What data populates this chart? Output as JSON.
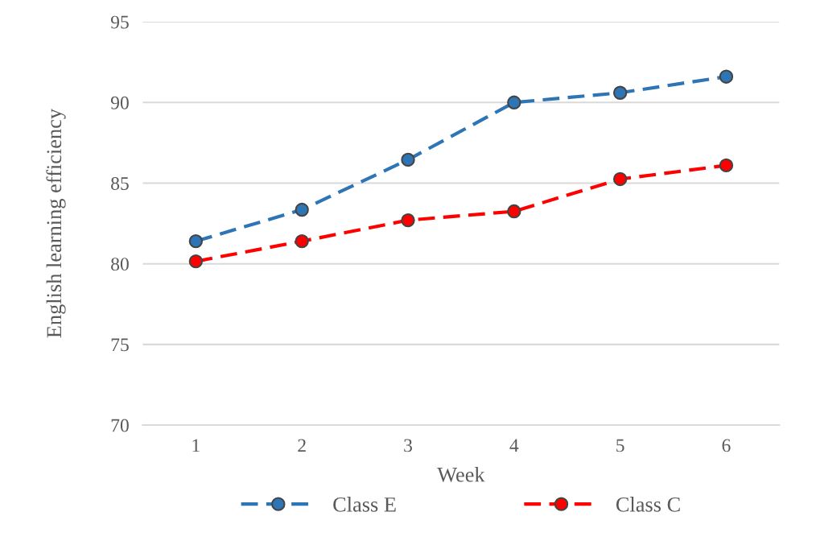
{
  "chart_data": {
    "type": "line",
    "xlabel": "Week",
    "ylabel": "English learning efficiency",
    "categories": [
      "1",
      "2",
      "3",
      "4",
      "5",
      "6"
    ],
    "series": [
      {
        "name": "Class E",
        "color": "#2e75b6",
        "values": [
          81.4,
          83.35,
          86.45,
          90,
          90.6,
          91.6
        ]
      },
      {
        "name": "Class C",
        "color": "#ff0000",
        "values": [
          80.15,
          81.4,
          82.7,
          83.25,
          85.25,
          86.1
        ]
      }
    ],
    "ylim": [
      70,
      95
    ],
    "yticks": [
      70,
      75,
      80,
      85,
      90,
      95
    ],
    "grid": "y",
    "legend": "bottom",
    "marker": "circle",
    "line_style": "dashed"
  }
}
